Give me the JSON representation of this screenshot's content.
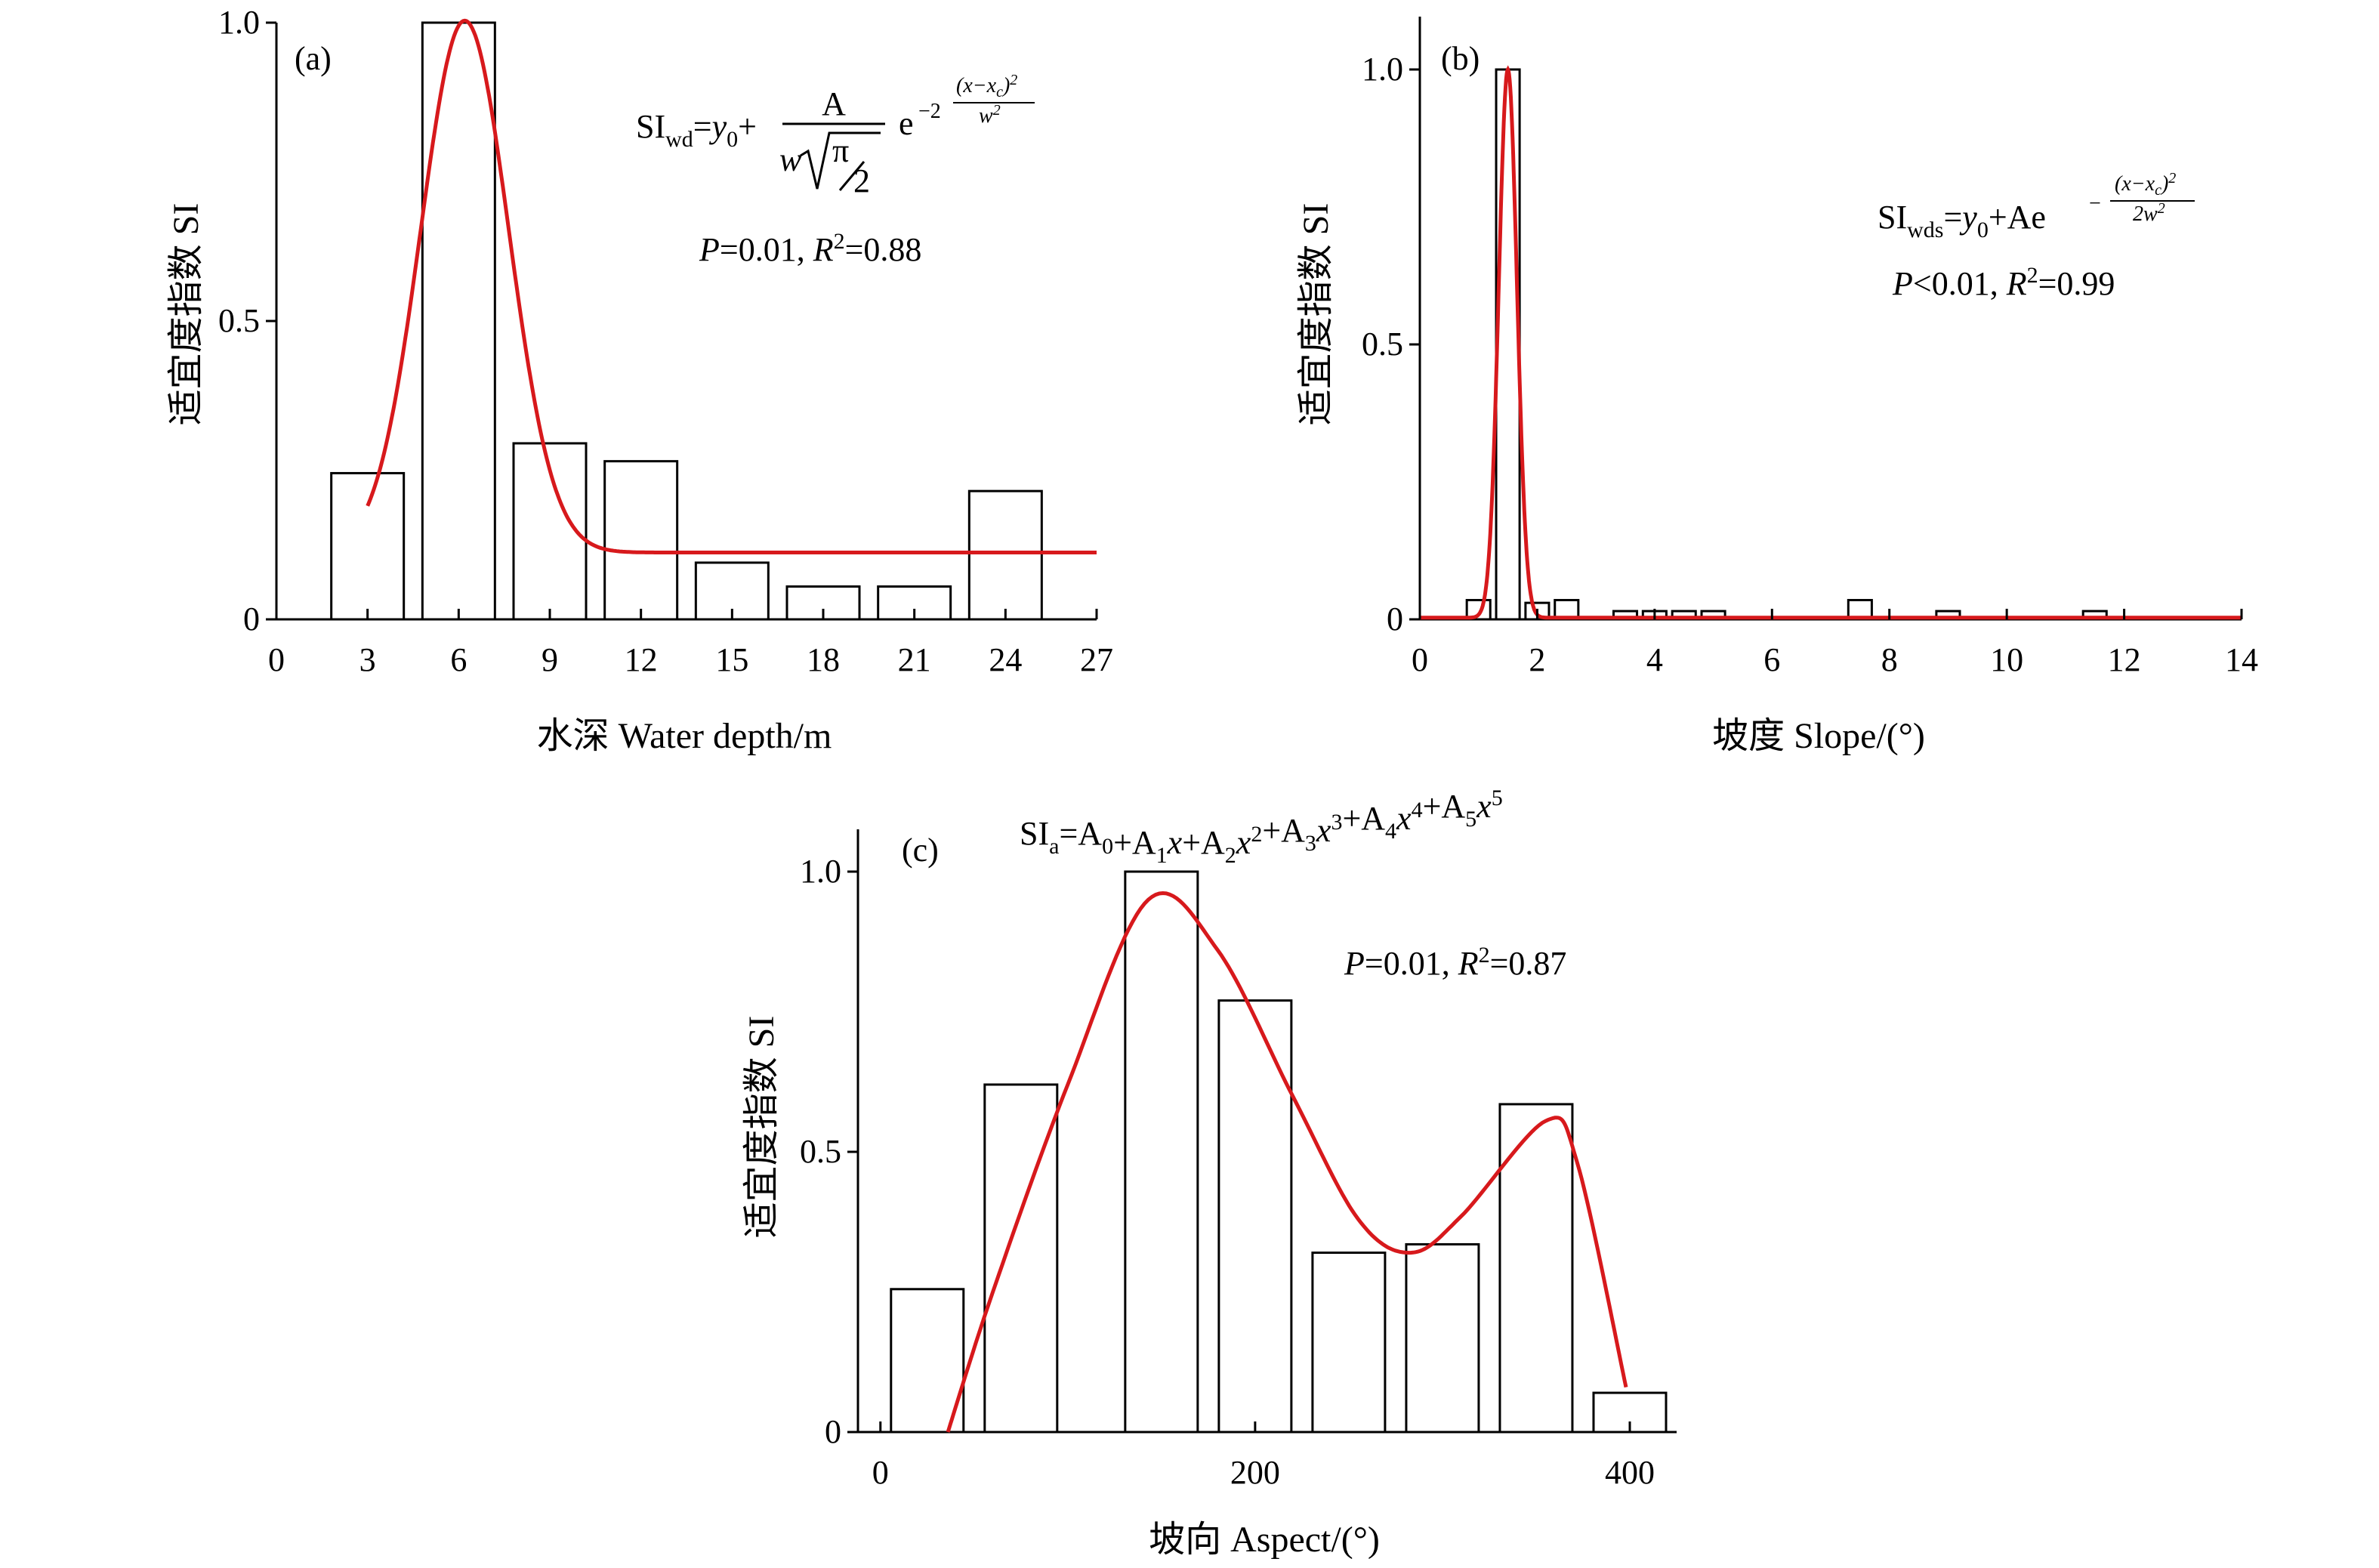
{
  "colors": {
    "fit_line": "#d7191c",
    "bar_edge": "#000000",
    "bar_fill": "#ffffff"
  },
  "chart_data": [
    {
      "type": "bar",
      "panel_label": "(a)",
      "xlabel": "水深 Water depth/m",
      "ylabel": "适宜度指数 SI",
      "xlim": [
        0,
        27
      ],
      "ylim": [
        0,
        1.0
      ],
      "xticks": [
        0,
        3,
        6,
        9,
        12,
        15,
        18,
        21,
        24,
        27
      ],
      "xtick_labels": [
        "0",
        "3",
        "6",
        "9",
        "12",
        "15",
        "18",
        "21",
        "24",
        "27"
      ],
      "yticks": [
        0,
        0.5,
        1.0
      ],
      "ytick_labels": [
        "0",
        "0.5",
        "1.0"
      ],
      "bars": [
        {
          "x": 3,
          "value": 0.245
        },
        {
          "x": 6,
          "value": 1.0
        },
        {
          "x": 9,
          "value": 0.295
        },
        {
          "x": 12,
          "value": 0.265
        },
        {
          "x": 15,
          "value": 0.095
        },
        {
          "x": 18,
          "value": 0.055
        },
        {
          "x": 21,
          "value": 0.055
        },
        {
          "x": 24,
          "value": 0.215
        }
      ],
      "fit": {
        "model": "gauss_pi",
        "y0": 0.112,
        "xc": 6.2,
        "w": 2.9,
        "A": 3.24,
        "x_range": [
          3,
          27
        ]
      },
      "formula": {
        "lhs": "SI",
        "lhs_sub": "wd",
        "eq": "=",
        "y0": "y",
        "y0_sub": "0",
        "plus": "+",
        "numerator": "A",
        "den_w": "w",
        "den_pi": "π",
        "den_2": "2",
        "e": "e",
        "exp_coef": "−2",
        "exp_num": "(x−x",
        "exp_num_sub": "c",
        "exp_num_close": ")",
        "exp_num_sup": "2",
        "exp_den": "w",
        "exp_den_sup": "2"
      },
      "stats": {
        "p_sym": "P",
        "p_rel": "=0.01, ",
        "r_sym": "R",
        "r_sup": "2",
        "r_rel": "=0.88"
      }
    },
    {
      "type": "bar",
      "panel_label": "(b)",
      "xlabel": "坡度 Slope/(°)",
      "ylabel": "适宜度指数 SI",
      "xlim": [
        0,
        14
      ],
      "ylim": [
        0,
        1.0
      ],
      "xticks": [
        0,
        2,
        4,
        6,
        8,
        10,
        12,
        14
      ],
      "xtick_labels": [
        "0",
        "2",
        "4",
        "6",
        "8",
        "10",
        "12",
        "14"
      ],
      "yticks": [
        0,
        0.5,
        1.0
      ],
      "ytick_labels": [
        "0",
        "0.5",
        "1.0"
      ],
      "bars": [
        {
          "x": 1.0,
          "value": 0.035
        },
        {
          "x": 1.5,
          "value": 1.0
        },
        {
          "x": 2.0,
          "value": 0.03
        },
        {
          "x": 2.5,
          "value": 0.035
        },
        {
          "x": 3.5,
          "value": 0.015
        },
        {
          "x": 4.0,
          "value": 0.015
        },
        {
          "x": 4.5,
          "value": 0.015
        },
        {
          "x": 5.0,
          "value": 0.015
        },
        {
          "x": 7.5,
          "value": 0.035
        },
        {
          "x": 9.0,
          "value": 0.015
        },
        {
          "x": 11.5,
          "value": 0.015
        }
      ],
      "fit": {
        "model": "gauss",
        "y0": 0.003,
        "xc": 1.5,
        "w": 0.155,
        "A": 0.997,
        "x_range": [
          0,
          14
        ]
      },
      "formula": {
        "lhs": "SI",
        "lhs_sub": "wds",
        "eq": "=",
        "y0": "y",
        "y0_sub": "0",
        "plus": "+",
        "a_e": "Ae",
        "exp_minus": "−",
        "exp_num": "(x−x",
        "exp_num_sub": "c",
        "exp_num_close": ")",
        "exp_num_sup": "2",
        "exp_den": "2w",
        "exp_den_sup": "2"
      },
      "stats": {
        "p_sym": "P",
        "p_rel": "<0.01, ",
        "r_sym": "R",
        "r_sup": "2",
        "r_rel": "=0.99"
      }
    },
    {
      "type": "bar",
      "panel_label": "(c)",
      "xlabel": "坡向 Aspect/(°)",
      "ylabel": "适宜度指数 SI",
      "xlim": [
        -12,
        425
      ],
      "ylim": [
        0,
        1.0
      ],
      "xticks": [
        0,
        200,
        400
      ],
      "xtick_labels": [
        "0",
        "200",
        "400"
      ],
      "yticks": [
        0,
        0.5,
        1.0
      ],
      "ytick_labels": [
        "0",
        "0.5",
        "1.0"
      ],
      "bars": [
        {
          "x": 25,
          "value": 0.255
        },
        {
          "x": 75,
          "value": 0.62
        },
        {
          "x": 150,
          "value": 1.0
        },
        {
          "x": 200,
          "value": 0.77
        },
        {
          "x": 250,
          "value": 0.32
        },
        {
          "x": 300,
          "value": 0.335
        },
        {
          "x": 350,
          "value": 0.585
        },
        {
          "x": 400,
          "value": 0.07
        }
      ],
      "fit": {
        "model": "spline",
        "points": [
          [
            36,
            0.0
          ],
          [
            60,
            0.25
          ],
          [
            100,
            0.62
          ],
          [
            143,
            0.95
          ],
          [
            180,
            0.86
          ],
          [
            220,
            0.6
          ],
          [
            255,
            0.38
          ],
          [
            283,
            0.32
          ],
          [
            310,
            0.385
          ],
          [
            355,
            0.555
          ],
          [
            372,
            0.48
          ],
          [
            398,
            0.08
          ]
        ]
      },
      "formula": {
        "lhs": "SI",
        "lhs_sub": "a",
        "eq": "=",
        "terms": [
          {
            "a": "A",
            "sub": "0",
            "x": "",
            "sup": ""
          },
          {
            "a": "+A",
            "sub": "1",
            "x": "x",
            "sup": ""
          },
          {
            "a": "+A",
            "sub": "2",
            "x": "x",
            "sup": "2"
          },
          {
            "a": "+A",
            "sub": "3",
            "x": "x",
            "sup": "3"
          },
          {
            "a": "+A",
            "sub": "4",
            "x": "x",
            "sup": "4"
          },
          {
            "a": "+A",
            "sub": "5",
            "x": "x",
            "sup": "5"
          }
        ]
      },
      "stats": {
        "p_sym": "P",
        "p_rel": "=0.01, ",
        "r_sym": "R",
        "r_sup": "2",
        "r_rel": "=0.87"
      }
    }
  ]
}
